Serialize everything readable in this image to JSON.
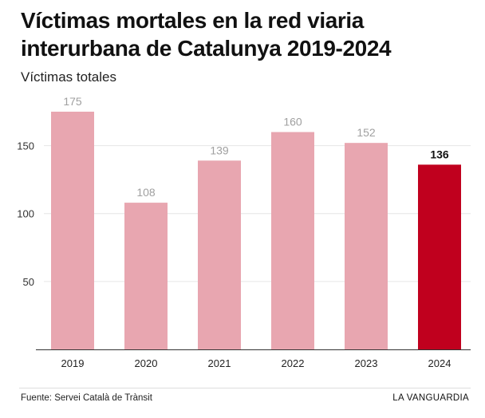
{
  "title": "Víctimas mortales en la red viaria interurbana de Catalunya 2019-2024",
  "subtitle": "Víctimas totales",
  "source": "Fuente: Servei Català de Trànsit",
  "brand": "LA VANGUARDIA",
  "colors": {
    "bar": "#e8a6b0",
    "highlight": "#c0001e",
    "label": "#a0a0a0",
    "highlight_label": "#111111",
    "grid": "#e6e6e6",
    "axis": "#333333"
  },
  "chart_data": {
    "type": "bar",
    "title": "Víctimas mortales en la red viaria interurbana de Catalunya 2019-2024",
    "ylabel": "Víctimas totales",
    "xlabel": "",
    "categories": [
      "2019",
      "2020",
      "2021",
      "2022",
      "2023",
      "2024"
    ],
    "values": [
      175,
      108,
      139,
      160,
      152,
      136
    ],
    "highlight_index": 5,
    "yticks": [
      50,
      100,
      150
    ],
    "ylim": [
      0,
      175
    ],
    "grid": true,
    "legend": "none"
  }
}
